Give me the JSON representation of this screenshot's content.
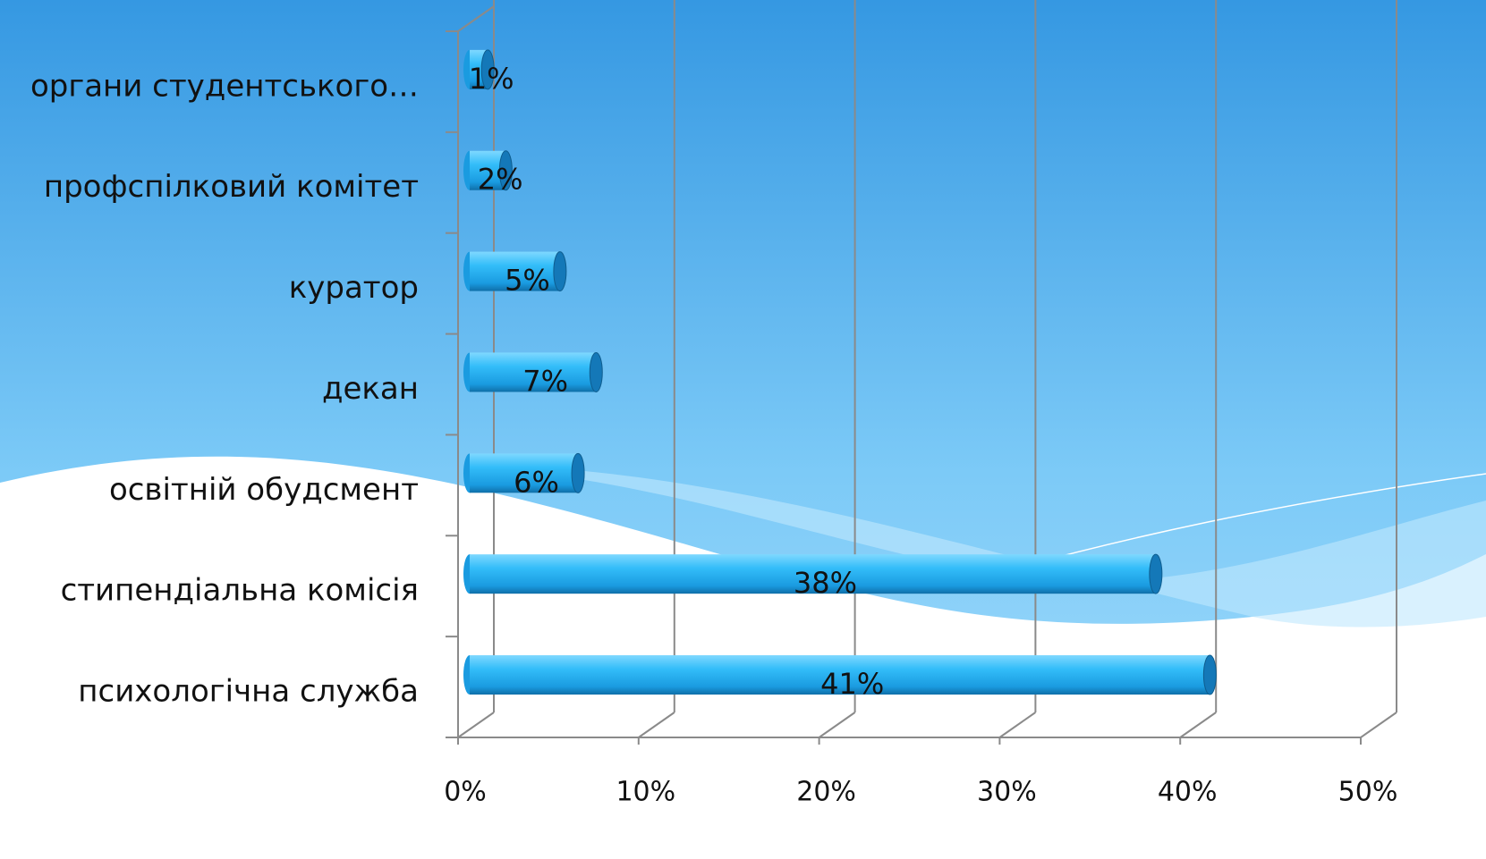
{
  "chart_data": {
    "type": "bar",
    "orientation": "horizontal",
    "categories": [
      "органи студентського…",
      "профспілковий комітет",
      "куратор",
      "декан",
      "освітній обудсмент",
      "стипендіальна комісія",
      "психологічна служба"
    ],
    "values": [
      1,
      2,
      5,
      7,
      6,
      38,
      41
    ],
    "value_labels": [
      "1%",
      "2%",
      "5%",
      "7%",
      "6%",
      "38%",
      "41%"
    ],
    "color": "#29b6f6",
    "xlim": [
      0,
      50
    ],
    "xticks": [
      {
        "value": 0,
        "label": "0%"
      },
      {
        "value": 10,
        "label": "10%"
      },
      {
        "value": 20,
        "label": "20%"
      },
      {
        "value": 30,
        "label": "30%"
      },
      {
        "value": 40,
        "label": "40%"
      },
      {
        "value": 50,
        "label": "50%"
      }
    ],
    "grid": true
  }
}
